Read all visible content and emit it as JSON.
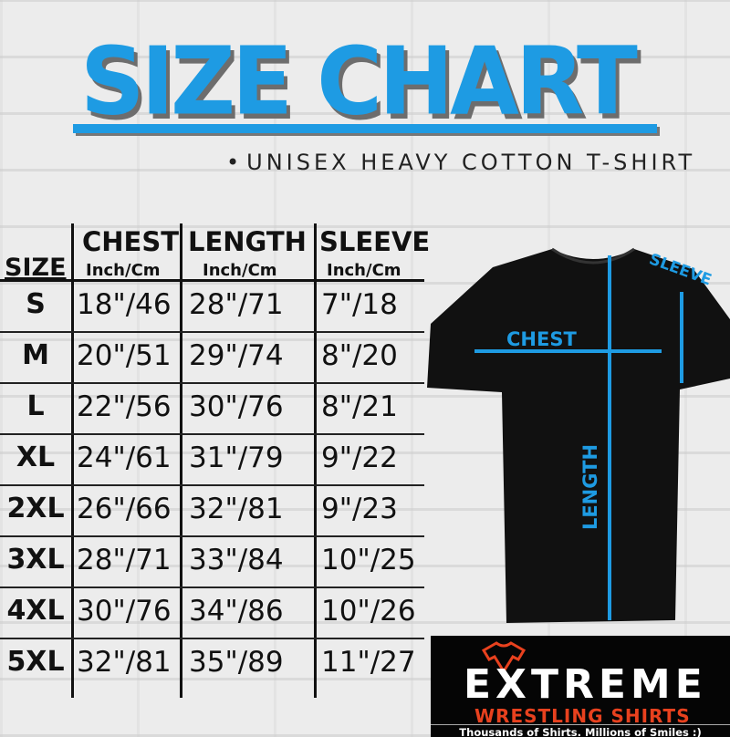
{
  "title": "SIZE CHART",
  "subtitle": "UNISEX HEAVY COTTON T-SHIRT",
  "colors": {
    "accent": "#1e9be3",
    "logo_red": "#e8411e",
    "shirt": "#111111"
  },
  "table": {
    "size_header": "SIZE",
    "columns": [
      {
        "label": "CHEST",
        "unit": "Inch/Cm"
      },
      {
        "label": "LENGTH",
        "unit": "Inch/Cm"
      },
      {
        "label": "SLEEVE",
        "unit": "Inch/Cm"
      }
    ],
    "rows": [
      {
        "size": "S",
        "chest": "18\"/46",
        "length": "28\"/71",
        "sleeve": "7\"/18"
      },
      {
        "size": "M",
        "chest": "20\"/51",
        "length": "29\"/74",
        "sleeve": "8\"/20"
      },
      {
        "size": "L",
        "chest": "22\"/56",
        "length": "30\"/76",
        "sleeve": "8\"/21"
      },
      {
        "size": "XL",
        "chest": "24\"/61",
        "length": "31\"/79",
        "sleeve": "9\"/22"
      },
      {
        "size": "2XL",
        "chest": "26\"/66",
        "length": "32\"/81",
        "sleeve": "9\"/23"
      },
      {
        "size": "3XL",
        "chest": "28\"/71",
        "length": "33\"/84",
        "sleeve": "10\"/25"
      },
      {
        "size": "4XL",
        "chest": "30\"/76",
        "length": "34\"/86",
        "sleeve": "10\"/26"
      },
      {
        "size": "5XL",
        "chest": "32\"/81",
        "length": "35\"/89",
        "sleeve": "11\"/27"
      }
    ]
  },
  "diagram": {
    "chest_label": "CHEST",
    "length_label": "LENGTH",
    "sleeve_label": "SLEEVE"
  },
  "logo": {
    "main": "EXTREME",
    "sub": "WRESTLING SHIRTS",
    "tagline": "Thousands of Shirts. Millions of Smiles :)"
  }
}
